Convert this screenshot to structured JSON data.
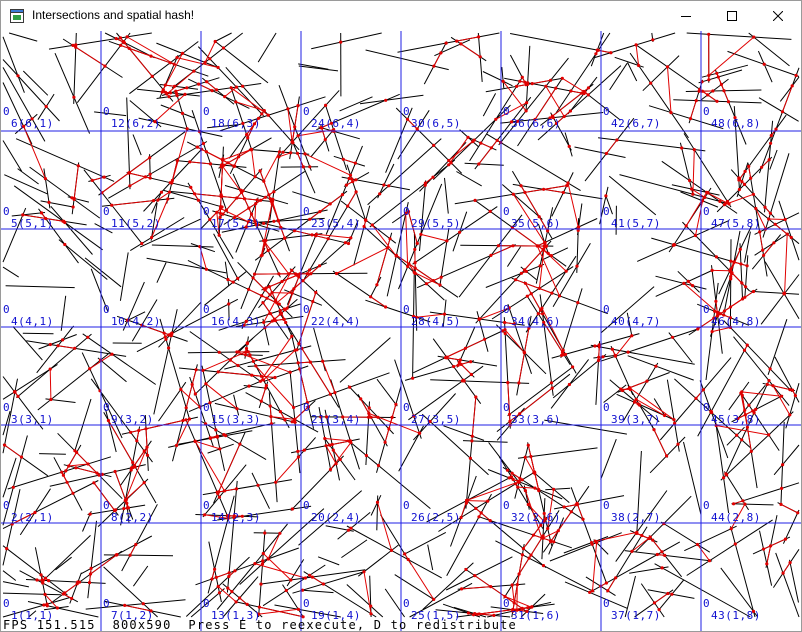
{
  "window": {
    "title": "Intersections and spatial hash!",
    "controls": {
      "minimize": "minimize-icon",
      "maximize": "maximize-icon",
      "close": "close-icon"
    }
  },
  "colors": {
    "grid": "#1f1fe6",
    "segment": "#000000",
    "intersection": "#e00000",
    "label": "#1010d0"
  },
  "grid": {
    "rows": [
      6,
      5,
      4,
      3,
      2,
      1
    ],
    "columns": [
      1,
      2,
      3,
      4,
      5,
      6,
      7,
      8
    ],
    "cells": [
      [
        "6(6,1)",
        "12(6,2)",
        "18(6,3)",
        "24(6,4)",
        "30(6,5)",
        "36(6,6)",
        "42(6,7)",
        "48(6,8)"
      ],
      [
        "5(5,1)",
        "11(5,2)",
        "17(5,3)",
        "23(5,4)",
        "29(5,5)",
        "35(5,6)",
        "41(5,7)",
        "47(5,8)"
      ],
      [
        "4(4,1)",
        "10(4,2)",
        "16(4,3)",
        "22(4,4)",
        "28(4,5)",
        "34(4,6)",
        "40(4,7)",
        "46(4,8)"
      ],
      [
        "3(3,1)",
        "9(3,2)",
        "15(3,3)",
        "21(3,4)",
        "27(3,5)",
        "33(3,6)",
        "39(3,7)",
        "45(3,8)"
      ],
      [
        "2(2,1)",
        "8(2,2)",
        "14(2,3)",
        "20(2,4)",
        "26(2,5)",
        "32(2,6)",
        "38(2,7)",
        "44(2,8)"
      ],
      [
        "1(1,1)",
        "7(1,2)",
        "13(1,3)",
        "19(1,4)",
        "25(1,5)",
        "31(1,6)",
        "37(1,7)",
        "43(1,8)"
      ]
    ],
    "count": "0"
  },
  "status": {
    "fps_label": "FPS",
    "fps_value": "151.515",
    "resolution": "800x590",
    "hint": "Press E to reexecute, D to redistribute"
  }
}
